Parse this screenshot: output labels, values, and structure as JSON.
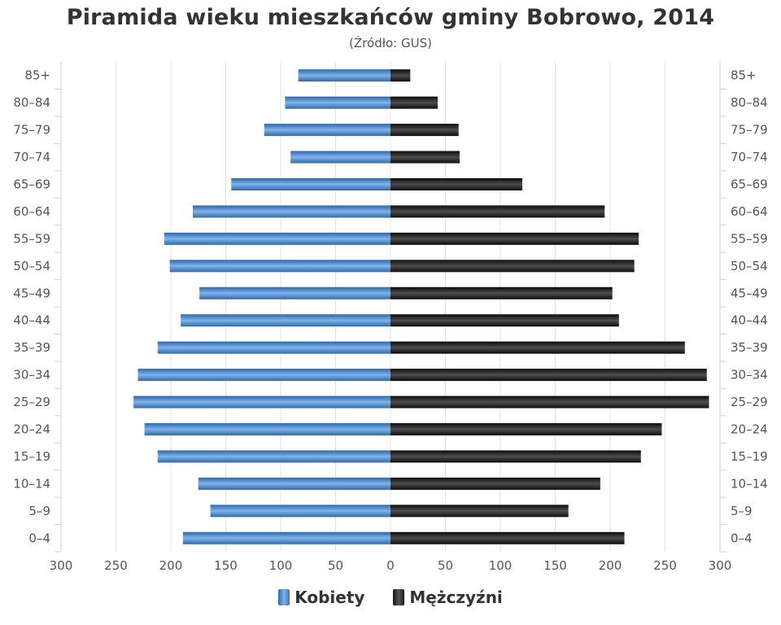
{
  "chart_data": {
    "type": "bar",
    "orientation": "horizontal",
    "title": "Piramida wieku mieszkańców gminy Bobrowo, 2014",
    "subtitle": "(Źródło: GUS)",
    "categories": [
      "85+",
      "80–84",
      "75–79",
      "70–74",
      "65–69",
      "60–64",
      "55–59",
      "50–54",
      "45–49",
      "40–44",
      "35–39",
      "30–34",
      "25–29",
      "20–24",
      "15–19",
      "10–14",
      "5–9",
      "0–4"
    ],
    "series": [
      {
        "name": "Kobiety",
        "color": "#4a86c8",
        "values": [
          84,
          96,
          115,
          91,
          145,
          180,
          206,
          201,
          174,
          191,
          212,
          230,
          234,
          224,
          212,
          175,
          164,
          189
        ]
      },
      {
        "name": "Mężczyźni",
        "color": "#222222",
        "values": [
          18,
          43,
          62,
          63,
          120,
          195,
          226,
          222,
          202,
          208,
          268,
          288,
          290,
          247,
          228,
          191,
          162,
          213
        ]
      }
    ],
    "xlim": [
      -300,
      300
    ],
    "xticks": [
      "300",
      "250",
      "200",
      "150",
      "100",
      "50",
      "0",
      "50",
      "100",
      "150",
      "200",
      "250",
      "300"
    ],
    "grid": true,
    "legend": "bottom"
  }
}
